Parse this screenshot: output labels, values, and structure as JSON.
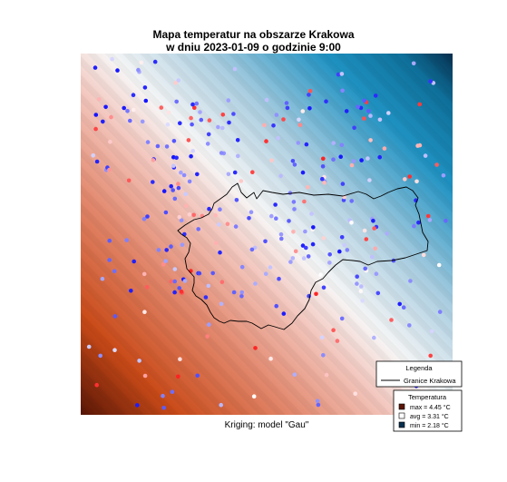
{
  "title_line1": "Mapa temperatur na obszarze Krakowa",
  "title_line2": "w dniu 2023-01-09 o godzinie 9:00",
  "caption": "Kriging: model \"Gau\"",
  "legend": {
    "title": "Legenda",
    "boundary_label": "Granice Krakowa",
    "temp_title": "Temperatura",
    "entries": [
      {
        "label": "max =  4.45 °C",
        "value": 4.45,
        "color": "#5a1605"
      },
      {
        "label": "avg =  3.31 °C",
        "value": 3.31,
        "color": "#ffffff"
      },
      {
        "label": "min =  2.18 °C",
        "value": 2.18,
        "color": "#062f4e"
      }
    ]
  },
  "colors": {
    "hot_dark": "#5a1605",
    "hot": "#c94a18",
    "warm": "#e38a70",
    "light_warm": "#f3c6bd",
    "neutral": "#f6f6f6",
    "light_cool": "#a9cde0",
    "cool": "#1f92c2",
    "cold": "#0e6f99",
    "cold_dark": "#062f4e",
    "point_warm": "#ff2020",
    "point_cool": "#1414ff",
    "boundary": "#000000"
  },
  "chart_data": {
    "type": "heatmap",
    "title": "Mapa temperatur na obszarze Krakowa w dniu 2023-01-09 o godzinie 9:00",
    "subtitle": "Kriging: model \"Gau\"",
    "unit": "°C",
    "value_range": [
      2.18,
      4.45
    ],
    "mean": 3.31,
    "gradient_direction": "warm bottom-left to cold top-right",
    "series": [
      {
        "name": "Granice Krakowa"
      }
    ]
  }
}
